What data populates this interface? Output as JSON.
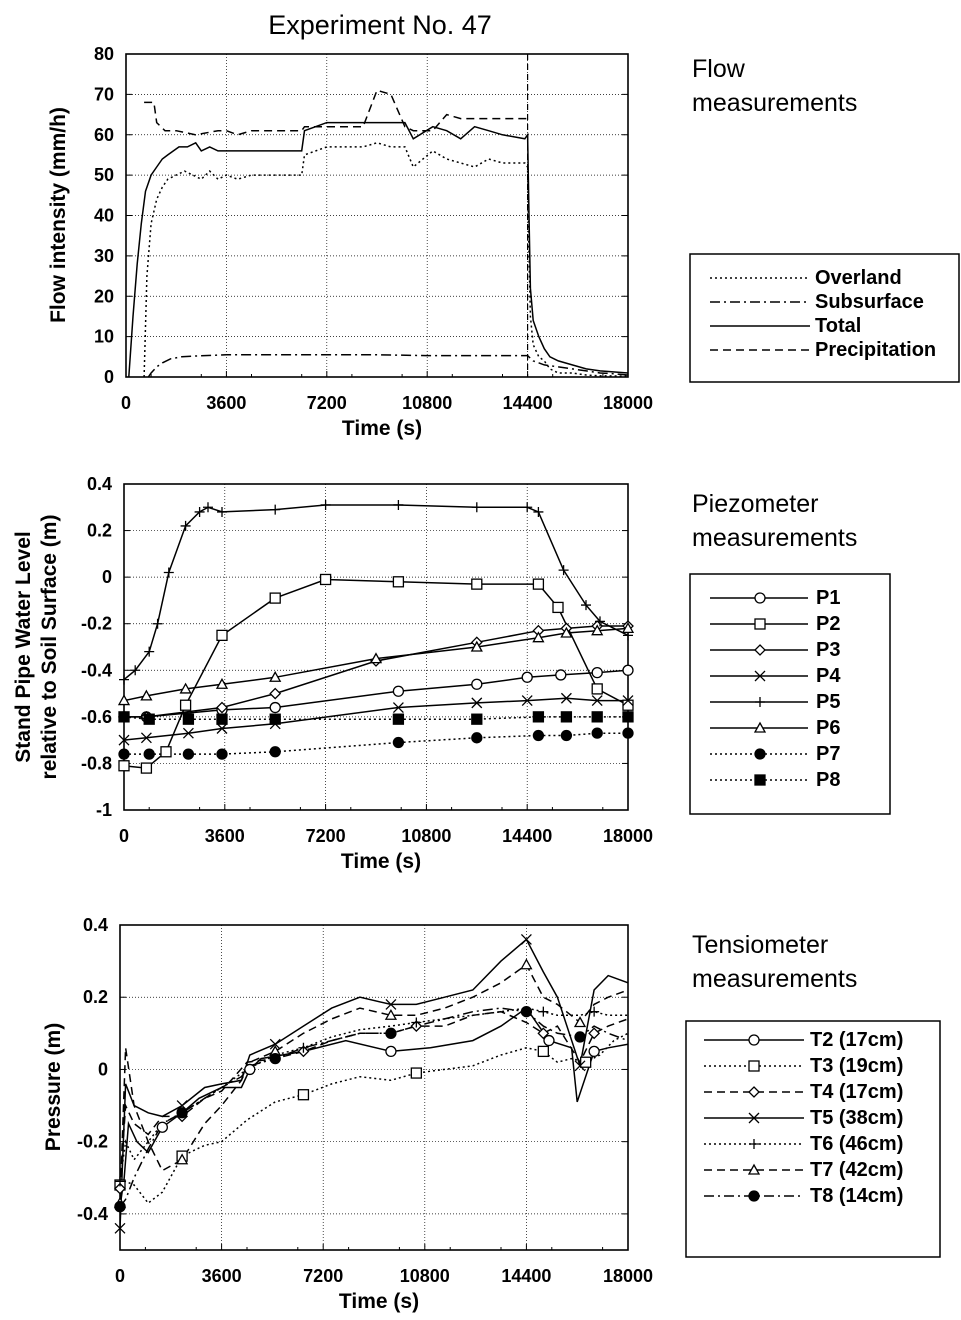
{
  "title": "Experiment No. 47",
  "chart_data": [
    {
      "type": "line",
      "section_label": [
        "Flow",
        "measurements"
      ],
      "xlabel": "Time (s)",
      "ylabel": "Flow intensity (mm/h)",
      "xlim": [
        0,
        18000
      ],
      "ylim": [
        0,
        80
      ],
      "x_ticks": [
        "0",
        "3600",
        "7200",
        "10800",
        "14400",
        "18000"
      ],
      "y_ticks": [
        "0",
        "10",
        "20",
        "30",
        "40",
        "50",
        "60",
        "70",
        "80"
      ],
      "grid": true,
      "series": [
        {
          "name": "Overland",
          "style": "dotted",
          "marker": "none",
          "x": [
            650,
            750,
            900,
            1100,
            1300,
            1500,
            1800,
            2100,
            2400,
            2700,
            3000,
            3300,
            3600,
            4000,
            4500,
            5000,
            5500,
            6300,
            6400,
            7200,
            8000,
            8500,
            9000,
            9500,
            10000,
            10300,
            11000,
            11500,
            12000,
            12500,
            13000,
            13500,
            14300,
            14400,
            14450,
            14500,
            14600,
            14800,
            15000,
            15200,
            15500,
            16000,
            16500,
            17000,
            18000
          ],
          "y": [
            0,
            25,
            38,
            44,
            47,
            49,
            50,
            51,
            50,
            49,
            51,
            49,
            50,
            49,
            50,
            50,
            50,
            50,
            55,
            57,
            57,
            57,
            58,
            57,
            57,
            52,
            56,
            54,
            53,
            52,
            54,
            53,
            53,
            52,
            30,
            15,
            8,
            5,
            4,
            2,
            1,
            1,
            0.5,
            0.3,
            0.2
          ]
        },
        {
          "name": "Subsurface",
          "style": "dashdot",
          "marker": "none",
          "x": [
            800,
            900,
            1100,
            1300,
            1600,
            2000,
            2500,
            3600,
            5000,
            7200,
            9000,
            10800,
            12600,
            14400,
            14600,
            15000,
            15500,
            16000,
            16500,
            17000,
            17500,
            18000
          ],
          "y": [
            0,
            1,
            2.5,
            3.5,
            4.5,
            5,
            5.2,
            5.5,
            5.5,
            5.5,
            5.5,
            5.3,
            5.3,
            5.3,
            4,
            3,
            2.5,
            2,
            1.5,
            1,
            0.8,
            0.5
          ]
        },
        {
          "name": "Total",
          "style": "solid",
          "marker": "none",
          "x": [
            100,
            250,
            400,
            550,
            700,
            900,
            1100,
            1300,
            1500,
            1700,
            1900,
            2200,
            2500,
            2700,
            3000,
            3300,
            3600,
            4000,
            4500,
            5000,
            5500,
            6300,
            6400,
            7200,
            8000,
            8500,
            9000,
            9500,
            10000,
            10300,
            11000,
            11500,
            12000,
            12500,
            13000,
            13500,
            14300,
            14400,
            14450,
            14500,
            14600,
            14800,
            15000,
            15200,
            15500,
            16000,
            16500,
            17000,
            18000
          ],
          "y": [
            0,
            15,
            28,
            38,
            46,
            50,
            52,
            54,
            55,
            56,
            57,
            57,
            58,
            56,
            57,
            56,
            56,
            56,
            56,
            56,
            56,
            56,
            61,
            63,
            63,
            63,
            63,
            63,
            63,
            59,
            62,
            61,
            59,
            62,
            61,
            60,
            59,
            60,
            40,
            22,
            14,
            10,
            7,
            5,
            4,
            3,
            2,
            1.5,
            1
          ]
        },
        {
          "name": "Precipitation",
          "style": "dashed",
          "marker": "none",
          "x": [
            650,
            1000,
            1100,
            1400,
            1800,
            2500,
            3300,
            3600,
            4000,
            4500,
            5000,
            6300,
            6400,
            7000,
            7200,
            8000,
            8500,
            9000,
            9500,
            10000,
            10300,
            11000,
            11500,
            12000,
            13000,
            14400
          ],
          "y": [
            68,
            68,
            63,
            61,
            61,
            60,
            61,
            61,
            60,
            61,
            61,
            61,
            62,
            62,
            62,
            62,
            62,
            71,
            70,
            62,
            61,
            61,
            65,
            64,
            64,
            64
          ]
        }
      ]
    },
    {
      "type": "line",
      "section_label": [
        "Piezometer",
        "measurements"
      ],
      "xlabel": "Time (s)",
      "ylabel": [
        "Stand Pipe Water Level",
        "relative to Soil Surface (m)"
      ],
      "xlim": [
        0,
        18000
      ],
      "ylim": [
        -1,
        0.4
      ],
      "x_ticks": [
        "0",
        "3600",
        "7200",
        "10800",
        "14400",
        "18000"
      ],
      "y_ticks": [
        "-1",
        "-0.8",
        "-0.6",
        "-0.4",
        "-0.2",
        "0",
        "0.2",
        "0.4"
      ],
      "grid": true,
      "series": [
        {
          "name": "P1",
          "style": "solid",
          "marker": "circle-open",
          "x": [
            0,
            800,
            3500,
            5400,
            9800,
            12600,
            14400,
            15600,
            16900,
            18000
          ],
          "y": [
            -0.6,
            -0.6,
            -0.57,
            -0.56,
            -0.49,
            -0.46,
            -0.43,
            -0.42,
            -0.41,
            -0.4
          ]
        },
        {
          "name": "P2",
          "style": "solid",
          "marker": "square-open",
          "x": [
            0,
            800,
            1500,
            2200,
            3500,
            5400,
            7200,
            9800,
            12600,
            14800,
            15500,
            16900,
            18000
          ],
          "y": [
            -0.81,
            -0.82,
            -0.75,
            -0.55,
            -0.25,
            -0.09,
            -0.01,
            -0.02,
            -0.03,
            -0.03,
            -0.13,
            -0.48,
            -0.55
          ]
        },
        {
          "name": "P3",
          "style": "solid",
          "marker": "diamond-open",
          "x": [
            0,
            800,
            3500,
            5400,
            9000,
            12600,
            14800,
            15800,
            16900,
            18000
          ],
          "y": [
            -0.6,
            -0.6,
            -0.56,
            -0.5,
            -0.36,
            -0.28,
            -0.23,
            -0.22,
            -0.21,
            -0.21
          ]
        },
        {
          "name": "P4",
          "style": "solid",
          "marker": "x",
          "x": [
            0,
            800,
            2300,
            3500,
            5400,
            9800,
            12600,
            14400,
            15800,
            16900,
            18000
          ],
          "y": [
            -0.7,
            -0.69,
            -0.67,
            -0.65,
            -0.63,
            -0.56,
            -0.54,
            -0.53,
            -0.52,
            -0.53,
            -0.53
          ]
        },
        {
          "name": "P5",
          "style": "solid",
          "marker": "plus",
          "x": [
            0,
            400,
            900,
            1200,
            1600,
            2200,
            2700,
            3000,
            3500,
            5400,
            7200,
            9800,
            12600,
            14400,
            14800,
            15700,
            16500,
            17000,
            18000
          ],
          "y": [
            -0.44,
            -0.4,
            -0.32,
            -0.2,
            0.02,
            0.22,
            0.28,
            0.3,
            0.28,
            0.29,
            0.31,
            0.31,
            0.3,
            0.3,
            0.28,
            0.03,
            -0.12,
            -0.19,
            -0.25
          ]
        },
        {
          "name": "P6",
          "style": "solid",
          "marker": "triangle-open",
          "x": [
            0,
            800,
            2200,
            3500,
            5400,
            9000,
            12600,
            14800,
            15800,
            16900,
            18000
          ],
          "y": [
            -0.53,
            -0.51,
            -0.48,
            -0.46,
            -0.43,
            -0.35,
            -0.3,
            -0.26,
            -0.24,
            -0.23,
            -0.22
          ]
        },
        {
          "name": "P7",
          "style": "dotted",
          "marker": "circle-filled",
          "x": [
            0,
            900,
            2300,
            3500,
            5400,
            9800,
            12600,
            14800,
            15800,
            16900,
            18000
          ],
          "y": [
            -0.76,
            -0.76,
            -0.76,
            -0.76,
            -0.75,
            -0.71,
            -0.69,
            -0.68,
            -0.68,
            -0.67,
            -0.67
          ]
        },
        {
          "name": "P8",
          "style": "dotted",
          "marker": "square-filled",
          "x": [
            0,
            900,
            2300,
            3500,
            5400,
            9800,
            12600,
            14800,
            15800,
            16900,
            18000
          ],
          "y": [
            -0.6,
            -0.61,
            -0.61,
            -0.61,
            -0.61,
            -0.61,
            -0.61,
            -0.6,
            -0.6,
            -0.6,
            -0.6
          ]
        }
      ]
    },
    {
      "type": "line",
      "section_label": [
        "Tensiometer",
        "measurements"
      ],
      "xlabel": "Time (s)",
      "ylabel": "Pressure (m)",
      "xlim": [
        0,
        18000
      ],
      "ylim": [
        -0.5,
        0.4
      ],
      "x_ticks": [
        "0",
        "3600",
        "7200",
        "10800",
        "14400",
        "18000"
      ],
      "y_ticks": [
        "-0.4",
        "-0.2",
        "0",
        "0.2",
        "0.4"
      ],
      "grid": true,
      "series": [
        {
          "name": "T2 (17cm)",
          "style": "solid",
          "marker": "circle-open",
          "x": [
            0,
            150,
            300,
            600,
            1000,
            1500,
            2200,
            2800,
            3600,
            4300,
            4600,
            5000,
            6500,
            8000,
            9600,
            11000,
            12500,
            13500,
            14400,
            15200,
            16000,
            16200,
            16800,
            17300,
            18000
          ],
          "y": [
            -0.38,
            -0.3,
            -0.15,
            -0.2,
            -0.23,
            -0.16,
            -0.12,
            -0.08,
            -0.05,
            -0.05,
            0.0,
            0.03,
            0.05,
            0.08,
            0.05,
            0.06,
            0.08,
            0.12,
            0.17,
            0.08,
            0.06,
            -0.09,
            0.05,
            0.06,
            0.07
          ]
        },
        {
          "name": "T3 (19cm)",
          "style": "dotted",
          "marker": "square-open",
          "x": [
            0,
            200,
            500,
            1000,
            1500,
            2200,
            3000,
            3600,
            4500,
            5500,
            6500,
            7500,
            8500,
            9600,
            10500,
            11500,
            12500,
            13500,
            14400,
            15000,
            15500,
            16000,
            16500,
            17000,
            17500,
            18000
          ],
          "y": [
            -0.32,
            -0.31,
            -0.32,
            -0.37,
            -0.34,
            -0.24,
            -0.21,
            -0.2,
            -0.14,
            -0.09,
            -0.07,
            -0.04,
            -0.02,
            -0.03,
            -0.01,
            0.0,
            0.01,
            0.04,
            0.06,
            0.05,
            0.02,
            0.03,
            0.02,
            0.04,
            0.08,
            0.1
          ]
        },
        {
          "name": "T4 (17cm)",
          "style": "dashed",
          "marker": "diamond-open",
          "x": [
            0,
            200,
            500,
            1000,
            1500,
            2200,
            3000,
            3600,
            4500,
            5500,
            6500,
            7500,
            8500,
            9600,
            10500,
            11500,
            12500,
            13500,
            14400,
            15000,
            15500,
            16300,
            16800,
            17300,
            18000
          ],
          "y": [
            -0.33,
            -0.1,
            -0.15,
            -0.18,
            -0.13,
            -0.13,
            -0.08,
            -0.06,
            0.02,
            0.03,
            0.05,
            0.08,
            0.1,
            0.1,
            0.12,
            0.12,
            0.15,
            0.16,
            0.13,
            0.1,
            0.12,
            0.02,
            0.1,
            0.12,
            0.14
          ]
        },
        {
          "name": "T5 (38cm)",
          "style": "solid",
          "marker": "x",
          "x": [
            0,
            200,
            500,
            1000,
            1500,
            2200,
            3000,
            3600,
            4300,
            4600,
            5500,
            6500,
            7500,
            8500,
            9600,
            10500,
            11500,
            12500,
            13500,
            14400,
            15000,
            15500,
            16300,
            16800,
            17300,
            18000
          ],
          "y": [
            -0.44,
            -0.04,
            -0.1,
            -0.12,
            -0.13,
            -0.1,
            -0.05,
            -0.04,
            -0.03,
            0.04,
            0.07,
            0.12,
            0.17,
            0.2,
            0.18,
            0.18,
            0.2,
            0.22,
            0.3,
            0.36,
            0.27,
            0.2,
            0.01,
            0.22,
            0.26,
            0.24
          ]
        },
        {
          "name": "T6 (46cm)",
          "style": "dotted",
          "marker": "plus",
          "x": [
            0,
            200,
            500,
            1000,
            1500,
            2200,
            3000,
            3600,
            4500,
            5500,
            6500,
            7500,
            8500,
            9600,
            10500,
            11500,
            12500,
            13500,
            14400,
            15000,
            15500,
            16300,
            16800,
            17300,
            18000
          ],
          "y": [
            -0.31,
            -0.2,
            -0.25,
            -0.2,
            -0.15,
            -0.12,
            -0.08,
            -0.05,
            0.0,
            0.04,
            0.06,
            0.09,
            0.11,
            0.12,
            0.13,
            0.14,
            0.15,
            0.16,
            0.17,
            0.16,
            0.15,
            0.15,
            0.16,
            0.15,
            0.15
          ]
        },
        {
          "name": "T7 (42cm)",
          "style": "dashed",
          "marker": "triangle-open",
          "x": [
            0,
            200,
            500,
            1000,
            1500,
            2200,
            3000,
            3600,
            4300,
            4600,
            5500,
            6500,
            7500,
            8500,
            9600,
            10500,
            11500,
            12500,
            13500,
            14400,
            15000,
            15500,
            16300,
            16800,
            17300,
            18000
          ],
          "y": [
            -0.37,
            0.06,
            -0.1,
            -0.2,
            -0.28,
            -0.25,
            -0.15,
            -0.1,
            -0.03,
            0.02,
            0.05,
            0.1,
            0.14,
            0.17,
            0.15,
            0.15,
            0.17,
            0.2,
            0.24,
            0.29,
            0.2,
            0.18,
            0.13,
            0.18,
            0.2,
            0.22
          ]
        },
        {
          "name": "T8 (14cm)",
          "style": "dashdot",
          "marker": "circle-filled",
          "x": [
            0,
            200,
            500,
            1000,
            1500,
            2200,
            3000,
            3600,
            4300,
            4600,
            5500,
            6500,
            7500,
            8500,
            9600,
            10500,
            11500,
            12500,
            13500,
            14400,
            15000,
            15500,
            16300,
            16800,
            17300,
            18000
          ],
          "y": [
            -0.38,
            -0.36,
            -0.3,
            -0.22,
            -0.15,
            -0.12,
            -0.08,
            -0.05,
            -0.02,
            0.01,
            0.03,
            0.06,
            0.08,
            0.1,
            0.1,
            0.12,
            0.14,
            0.16,
            0.17,
            0.16,
            0.12,
            0.1,
            0.09,
            0.12,
            0.1,
            0.08
          ]
        }
      ]
    }
  ]
}
